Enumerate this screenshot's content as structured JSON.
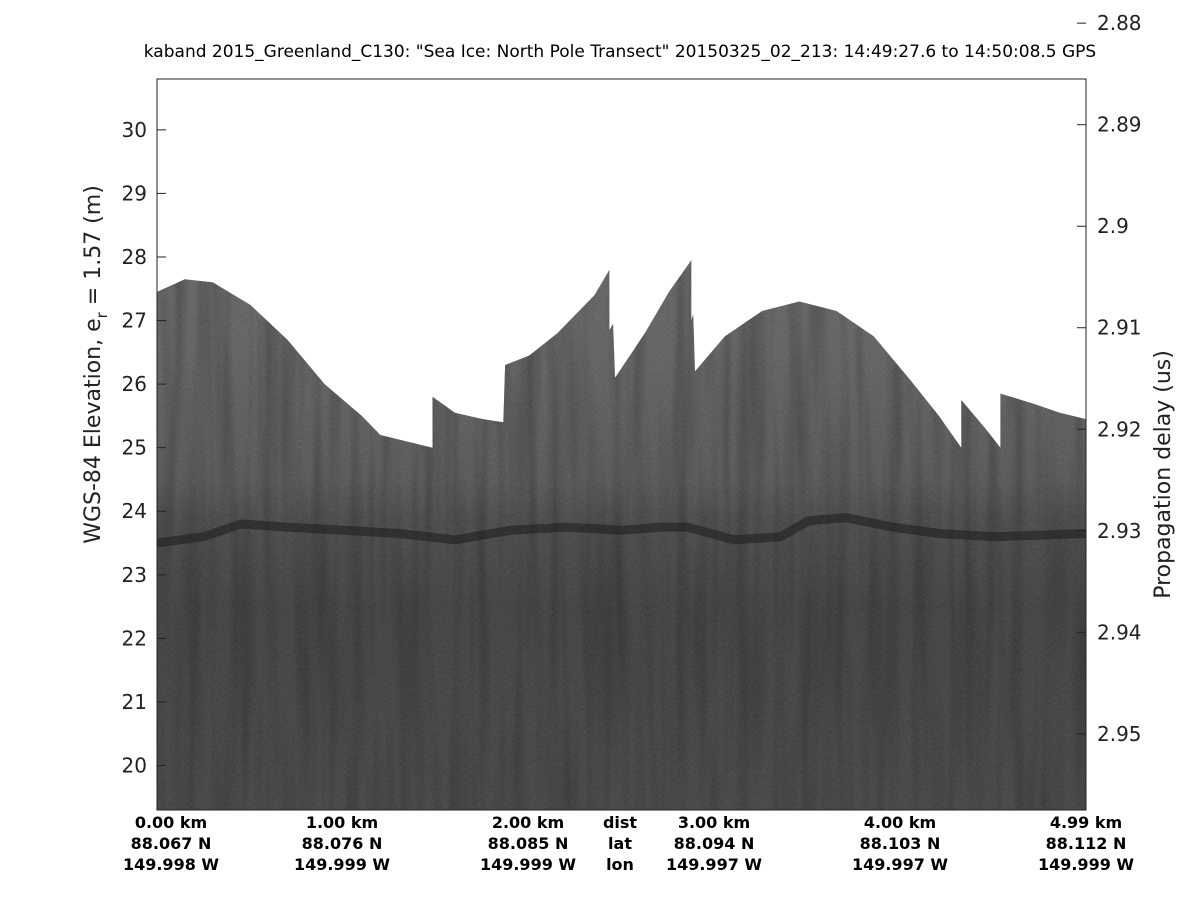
{
  "title": "kaband 2015_Greenland_C130: \"Sea Ice: North Pole Transect\"  20150325_02_213: 14:49:27.6 to 14:50:08.5 GPS",
  "chart_data": {
    "type": "heatmap",
    "title": "kaband 2015_Greenland_C130: \"Sea Ice: North Pole Transect\"  20150325_02_213: 14:49:27.6 to 14:50:08.5 GPS",
    "ylabel_left": "WGS-84 Elevation, e",
    "ylabel_left_sub": "r",
    "ylabel_left_suffix": " = 1.57 (m)",
    "ylabel_right": "Propagation delay (us)",
    "ylim_left": [
      19.3,
      30.8
    ],
    "left_ticks": [
      20,
      21,
      22,
      23,
      24,
      25,
      26,
      27,
      28,
      29,
      30
    ],
    "right_ticks": [
      2.88,
      2.89,
      2.9,
      2.91,
      2.92,
      2.93,
      2.94,
      2.95
    ],
    "right_tick_labels": [
      "2.88",
      "2.89",
      "2.9",
      "2.91",
      "2.92",
      "2.93",
      "2.94",
      "2.95"
    ],
    "delay_at_ylim": [
      2.9575,
      2.8855
    ],
    "xlim_km": [
      0,
      4.99
    ],
    "colormap": "gray",
    "top_boundary_elevation": [
      [
        0.0,
        27.45
      ],
      [
        0.15,
        27.65
      ],
      [
        0.3,
        27.6
      ],
      [
        0.5,
        27.25
      ],
      [
        0.7,
        26.7
      ],
      [
        0.9,
        26.0
      ],
      [
        1.1,
        25.5
      ],
      [
        1.2,
        25.2
      ],
      [
        1.48,
        25.0
      ],
      [
        1.48,
        25.8
      ],
      [
        1.6,
        25.55
      ],
      [
        1.75,
        25.45
      ],
      [
        1.86,
        25.4
      ],
      [
        1.87,
        26.3
      ],
      [
        2.0,
        26.45
      ],
      [
        2.15,
        26.8
      ],
      [
        2.35,
        27.4
      ],
      [
        2.43,
        27.8
      ],
      [
        2.43,
        26.85
      ],
      [
        2.45,
        26.95
      ],
      [
        2.46,
        26.1
      ],
      [
        2.62,
        26.8
      ],
      [
        2.75,
        27.45
      ],
      [
        2.87,
        27.95
      ],
      [
        2.87,
        27.0
      ],
      [
        2.88,
        27.1
      ],
      [
        2.89,
        26.2
      ],
      [
        3.05,
        26.75
      ],
      [
        3.25,
        27.15
      ],
      [
        3.45,
        27.3
      ],
      [
        3.65,
        27.15
      ],
      [
        3.85,
        26.75
      ],
      [
        4.05,
        26.05
      ],
      [
        4.2,
        25.5
      ],
      [
        4.32,
        25.0
      ],
      [
        4.32,
        25.75
      ],
      [
        4.45,
        25.3
      ],
      [
        4.53,
        25.0
      ],
      [
        4.53,
        25.85
      ],
      [
        4.7,
        25.7
      ],
      [
        4.85,
        25.55
      ],
      [
        4.99,
        25.45
      ]
    ],
    "surface_elevation": [
      [
        0.0,
        23.5
      ],
      [
        0.25,
        23.6
      ],
      [
        0.45,
        23.8
      ],
      [
        0.7,
        23.75
      ],
      [
        1.0,
        23.7
      ],
      [
        1.3,
        23.65
      ],
      [
        1.6,
        23.55
      ],
      [
        1.9,
        23.7
      ],
      [
        2.2,
        23.75
      ],
      [
        2.5,
        23.7
      ],
      [
        2.7,
        23.75
      ],
      [
        2.85,
        23.75
      ],
      [
        3.1,
        23.55
      ],
      [
        3.35,
        23.6
      ],
      [
        3.5,
        23.85
      ],
      [
        3.7,
        23.9
      ],
      [
        3.95,
        23.75
      ],
      [
        4.2,
        23.65
      ],
      [
        4.5,
        23.6
      ],
      [
        4.99,
        23.65
      ]
    ],
    "x_tick_columns": [
      {
        "dist": "0.00 km",
        "lat": "88.067 N",
        "lon": "149.998 W"
      },
      {
        "dist": "1.00 km",
        "lat": "88.076 N",
        "lon": "149.999 W"
      },
      {
        "dist": "2.00 km",
        "lat": "88.085 N",
        "lon": "149.999 W"
      },
      {
        "dist": "3.00 km",
        "lat": "88.094 N",
        "lon": "149.997 W"
      },
      {
        "dist": "4.00 km",
        "lat": "88.103 N",
        "lon": "149.997 W"
      },
      {
        "dist": "4.99 km",
        "lat": "88.112 N",
        "lon": "149.999 W"
      }
    ],
    "row_labels": [
      "dist",
      "lat",
      "lon"
    ]
  }
}
